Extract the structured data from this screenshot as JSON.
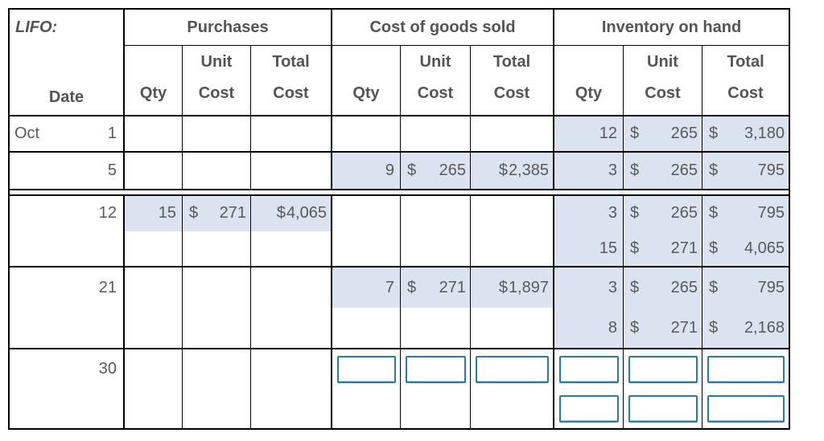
{
  "currency_symbol": "$",
  "header": {
    "method_label": "LIFO:",
    "date_label": "Date",
    "groups": [
      {
        "label": "Purchases"
      },
      {
        "label": "Cost of goods sold"
      },
      {
        "label": "Inventory on hand"
      }
    ],
    "sub": {
      "qty": "Qty",
      "unit_line1": "Unit",
      "unit_line2": "Cost",
      "total_line1": "Total",
      "total_line2": "Cost"
    }
  },
  "rows": [
    {
      "month": "Oct",
      "day": "1",
      "inventory": [
        {
          "qty": "12",
          "unit": "265",
          "total": "3,180"
        }
      ]
    },
    {
      "month": "",
      "day": "5",
      "cogs": [
        {
          "qty": "9",
          "unit": "265",
          "total": "2,385"
        }
      ],
      "inventory": [
        {
          "qty": "3",
          "unit": "265",
          "total": "795"
        }
      ]
    },
    {
      "month": "",
      "day": "12",
      "purchases": [
        {
          "qty": "15",
          "unit": "271",
          "total": "4,065"
        }
      ],
      "inventory": [
        {
          "qty": "3",
          "unit": "265",
          "total": "795"
        },
        {
          "qty": "15",
          "unit": "271",
          "total": "4,065"
        }
      ]
    },
    {
      "month": "",
      "day": "21",
      "cogs": [
        {
          "qty": "7",
          "unit": "271",
          "total": "1,897"
        }
      ],
      "inventory": [
        {
          "qty": "3",
          "unit": "265",
          "total": "795"
        },
        {
          "qty": "8",
          "unit": "271",
          "total": "2,168"
        }
      ]
    },
    {
      "month": "",
      "day": "30"
    }
  ],
  "colors": {
    "highlight": "#dce3f0",
    "border": "#000000",
    "text": "#595959",
    "input_border": "#2b7c9c"
  }
}
